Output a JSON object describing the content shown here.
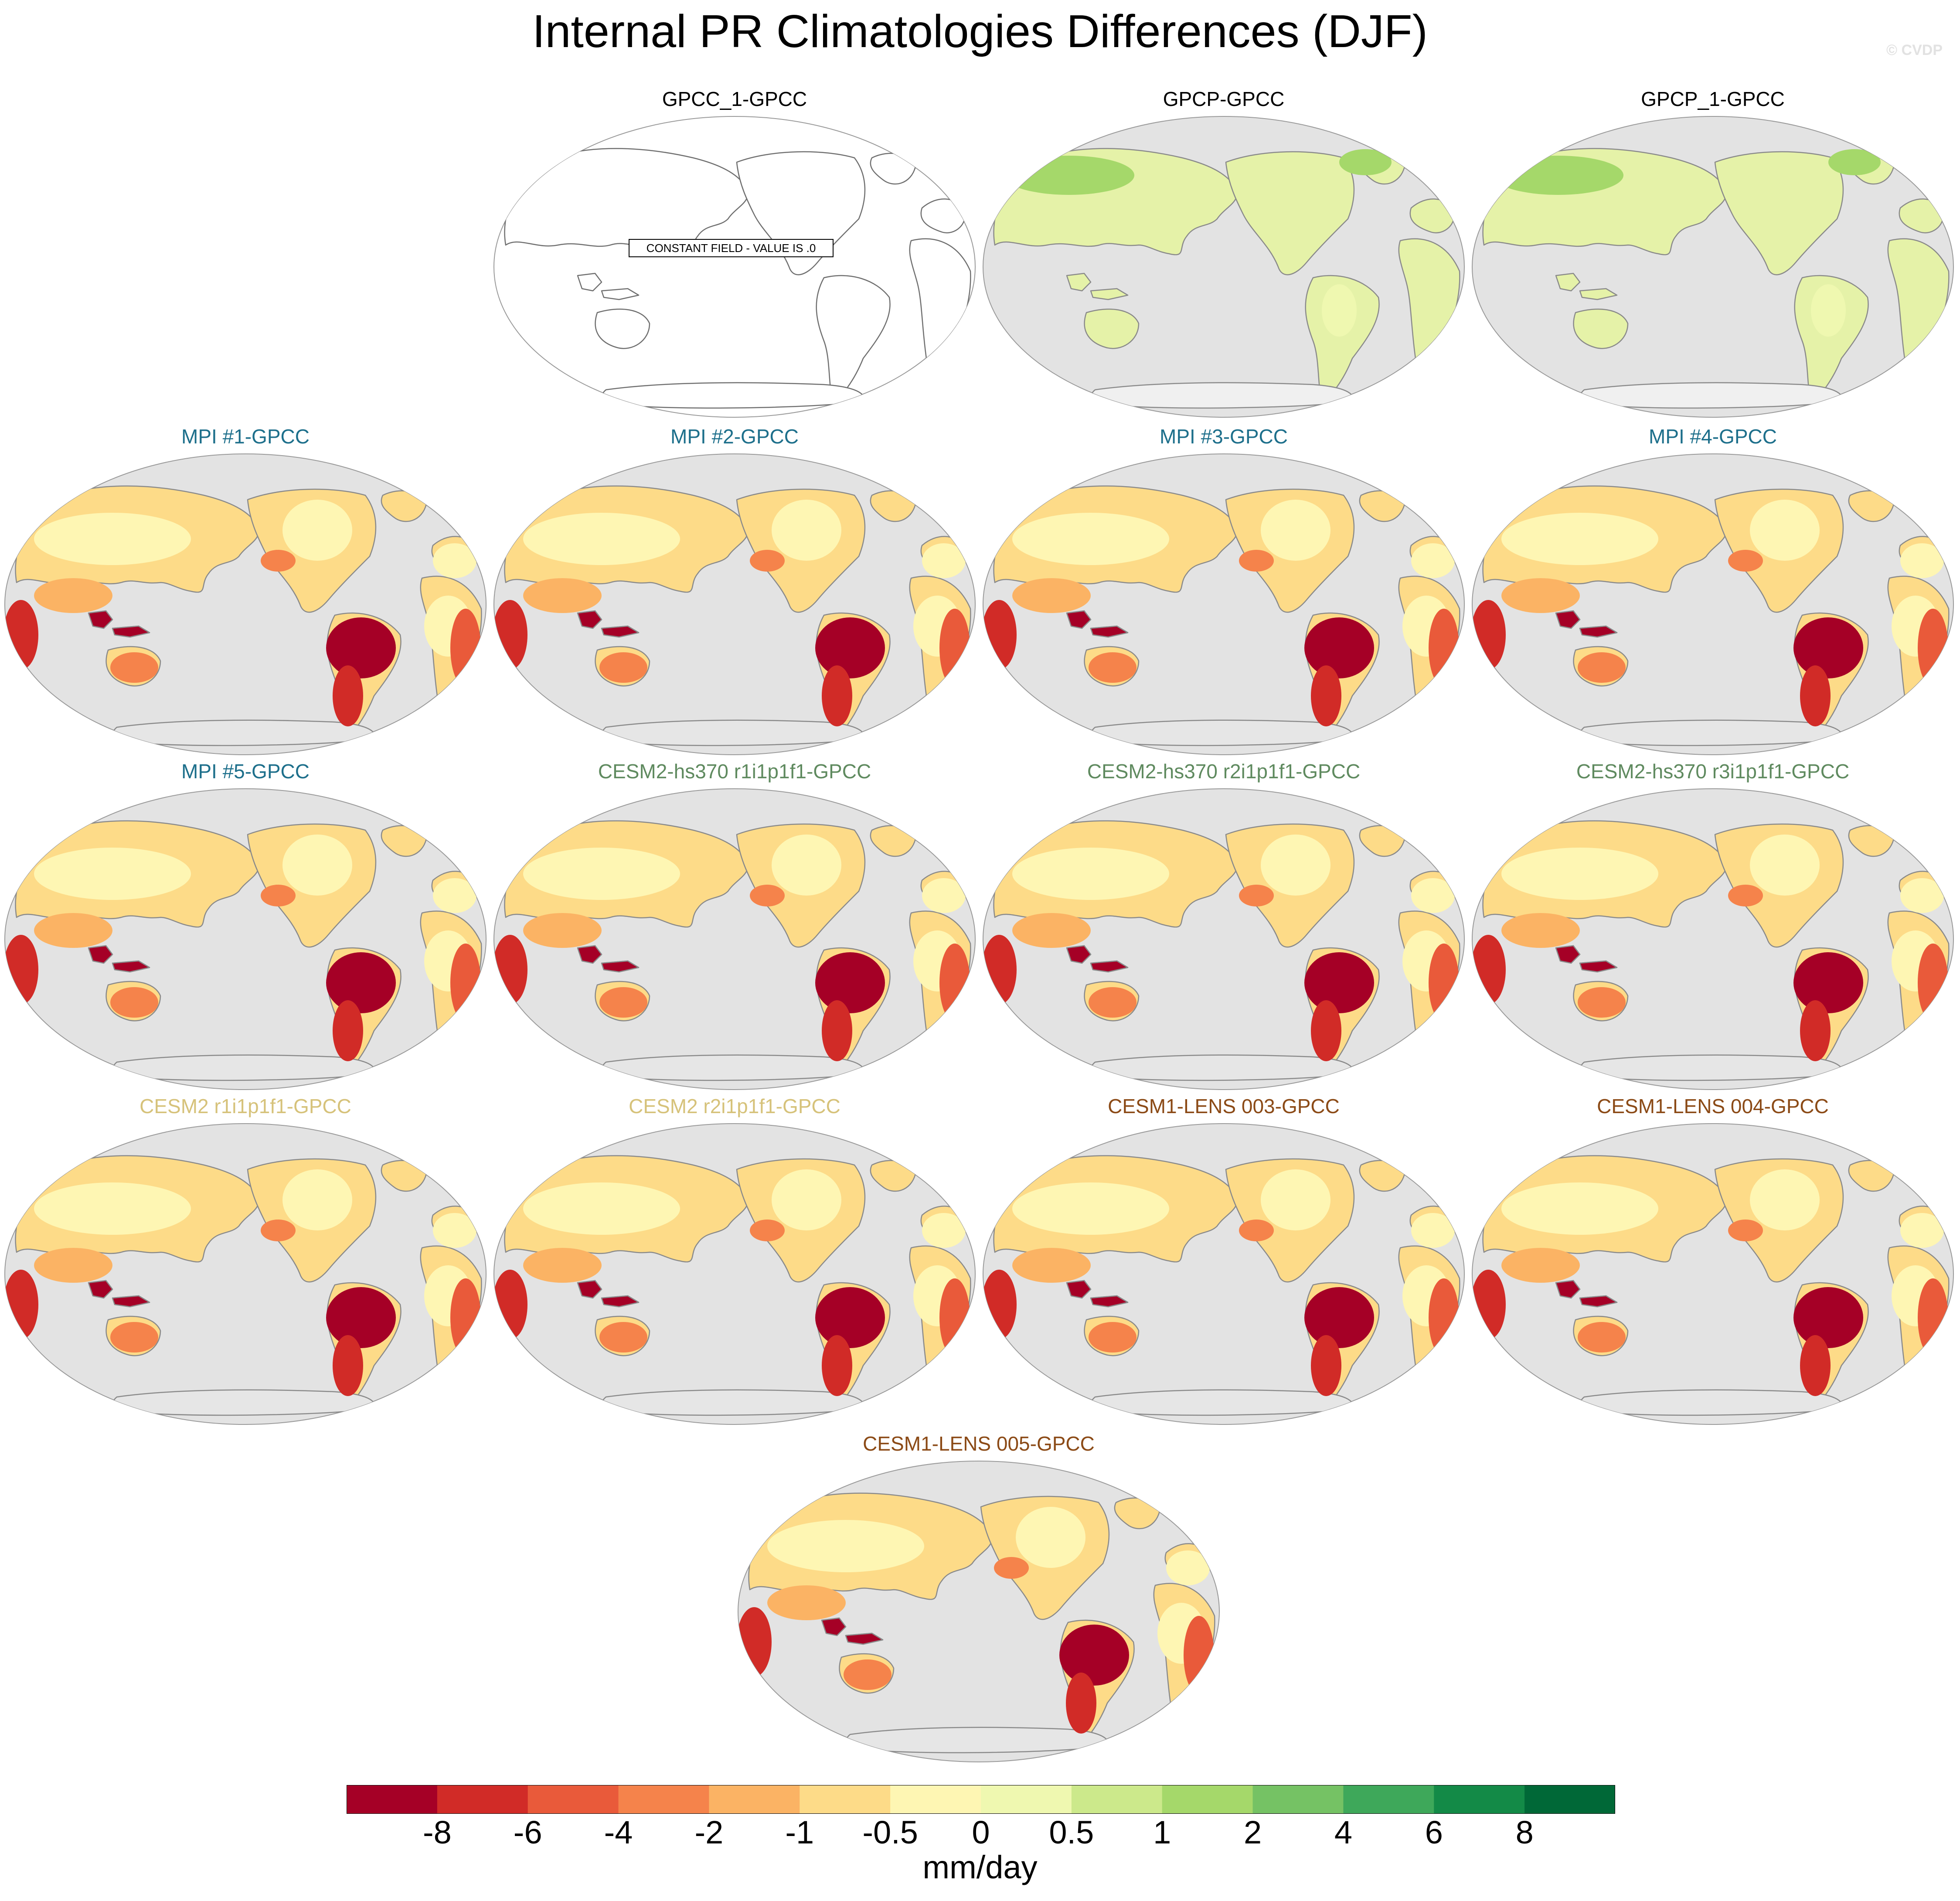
{
  "title": "Internal PR Climatologies Differences (DJF)",
  "watermark": "© CVDP",
  "colors": {
    "ocean": "#e3e3e3",
    "coast": "#8a8a8a",
    "title_obs": "#000000",
    "title_mpi": "#1d6f8b",
    "title_cesm2hs": "#5f8a5f",
    "title_cesm2": "#d6c27a",
    "title_lens": "#8b4a16"
  },
  "panels": [
    {
      "title": "GPCC_1-GPCC",
      "style": "empty",
      "title_color": "title_obs",
      "note": "CONSTANT FIELD - VALUE IS .0"
    },
    {
      "title": "GPCP-GPCC",
      "style": "obs",
      "title_color": "title_obs"
    },
    {
      "title": "GPCP_1-GPCC",
      "style": "obs",
      "title_color": "title_obs"
    },
    {
      "title": "MPI #1-GPCC",
      "style": "model",
      "title_color": "title_mpi"
    },
    {
      "title": "MPI #2-GPCC",
      "style": "model",
      "title_color": "title_mpi"
    },
    {
      "title": "MPI #3-GPCC",
      "style": "model",
      "title_color": "title_mpi"
    },
    {
      "title": "MPI #4-GPCC",
      "style": "model",
      "title_color": "title_mpi"
    },
    {
      "title": "MPI #5-GPCC",
      "style": "model",
      "title_color": "title_mpi"
    },
    {
      "title": "CESM2-hs370 r1i1p1f1-GPCC",
      "style": "model",
      "title_color": "title_cesm2hs"
    },
    {
      "title": "CESM2-hs370 r2i1p1f1-GPCC",
      "style": "model",
      "title_color": "title_cesm2hs"
    },
    {
      "title": "CESM2-hs370 r3i1p1f1-GPCC",
      "style": "model",
      "title_color": "title_cesm2hs"
    },
    {
      "title": "CESM2 r1i1p1f1-GPCC",
      "style": "model",
      "title_color": "title_cesm2"
    },
    {
      "title": "CESM2 r2i1p1f1-GPCC",
      "style": "model",
      "title_color": "title_cesm2"
    },
    {
      "title": "CESM1-LENS 003-GPCC",
      "style": "model",
      "title_color": "title_lens"
    },
    {
      "title": "CESM1-LENS 004-GPCC",
      "style": "model",
      "title_color": "title_lens"
    },
    {
      "title": "CESM1-LENS 005-GPCC",
      "style": "model",
      "title_color": "title_lens"
    }
  ],
  "colorbar": {
    "colors": [
      "#a50026",
      "#d12b27",
      "#e95a3a",
      "#f5834b",
      "#fbb364",
      "#fddb88",
      "#fef6b3",
      "#eff8b0",
      "#cce98b",
      "#a5d86a",
      "#75c264",
      "#3ea85a",
      "#138a47",
      "#006837"
    ],
    "ticks": [
      "-8",
      "-6",
      "-4",
      "-2",
      "-1",
      "-0.5",
      "0",
      "0.5",
      "1",
      "2",
      "4",
      "6",
      "8"
    ],
    "units": "mm/day"
  }
}
